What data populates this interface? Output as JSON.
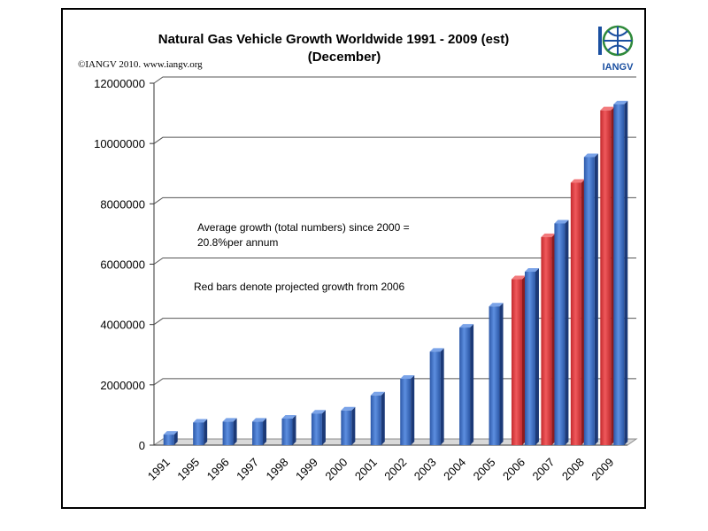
{
  "chart_data": {
    "type": "bar",
    "title_line1": "Natural Gas Vehicle Growth Worldwide 1991 - 2009 (est)",
    "title_line2": "(December)",
    "copyright": "©IANGV 2010. www.iangv.org",
    "logo_text": "IANGV",
    "categories": [
      "1991",
      "1995",
      "1996",
      "1997",
      "1998",
      "1999",
      "2000",
      "2001",
      "2002",
      "2003",
      "2004",
      "2005",
      "2006",
      "2007",
      "2008",
      "2009"
    ],
    "series": [
      {
        "name": "",
        "color": "#e0393e",
        "values": [
          null,
          null,
          null,
          null,
          null,
          null,
          null,
          null,
          null,
          null,
          null,
          null,
          5500000,
          6900000,
          8700000,
          11100000
        ]
      },
      {
        "name": "",
        "color": "#3a6fc4",
        "values": [
          350000,
          750000,
          780000,
          780000,
          880000,
          1050000,
          1150000,
          1650000,
          2200000,
          3100000,
          3900000,
          4600000,
          5750000,
          7350000,
          9550000,
          11300000
        ]
      }
    ],
    "yticks": [
      "0",
      "2000000",
      "4000000",
      "6000000",
      "8000000",
      "10000000",
      "12000000"
    ],
    "ylim": [
      0,
      12000000
    ],
    "grid": true,
    "annotations": [
      "Average growth  (total numbers) since 2000 =",
      "20.8%per annum",
      "Red bars denote projected growth from 2006"
    ]
  }
}
